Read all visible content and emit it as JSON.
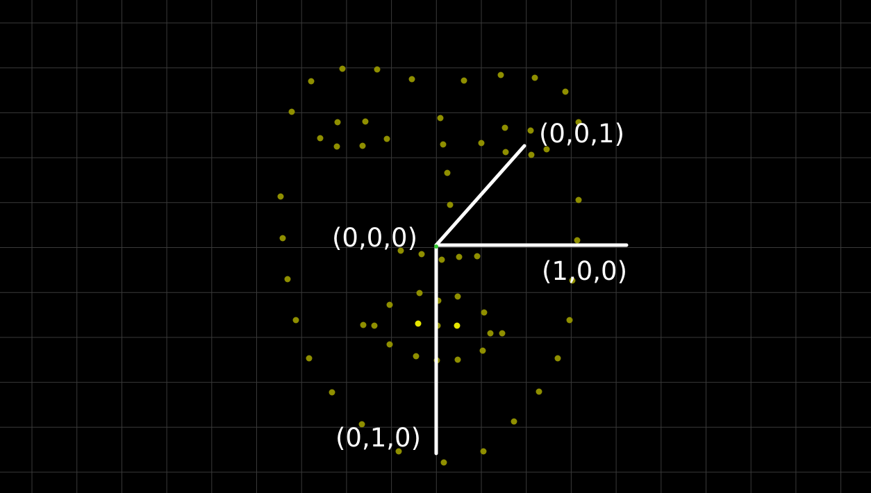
{
  "colors": {
    "background": "#000000",
    "grid": "#3a3a3a",
    "point": "#8f8f00",
    "point_highlight": "#e6e600",
    "axis": "#ffffff",
    "origin_marker": "#33cc33"
  },
  "labels": {
    "origin": "(0,0,0)",
    "x_axis": "(1,0,0)",
    "y_axis": "(0,1,0)",
    "z_axis": "(0,0,1)"
  }
}
